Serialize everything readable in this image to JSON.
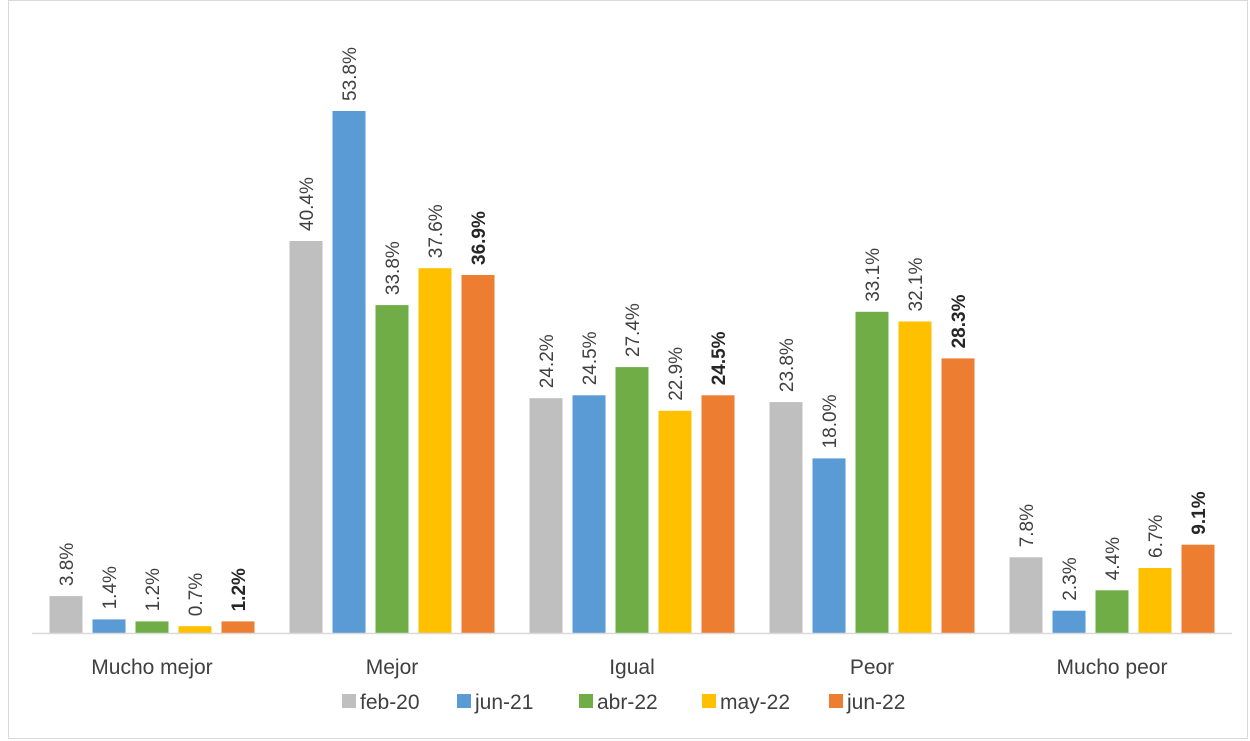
{
  "chart_data": {
    "type": "bar",
    "title": "",
    "categories": [
      "Mucho mejor",
      "Mejor",
      "Igual",
      "Peor",
      "Mucho peor"
    ],
    "series": [
      {
        "name": "feb-20",
        "color": "#bfbfbf",
        "values": [
          3.8,
          40.4,
          24.2,
          23.8,
          7.8
        ],
        "labels": [
          "3.8%",
          "40.4%",
          "24.2%",
          "23.8%",
          "7.8%"
        ],
        "bold": false
      },
      {
        "name": "jun-21",
        "color": "#5b9bd5",
        "values": [
          1.4,
          53.8,
          24.5,
          18.0,
          2.3
        ],
        "labels": [
          "1.4%",
          "53.8%",
          "24.5%",
          "18.0%",
          "2.3%"
        ],
        "bold": false
      },
      {
        "name": "abr-22",
        "color": "#70ad47",
        "values": [
          1.2,
          33.8,
          27.4,
          33.1,
          4.4
        ],
        "labels": [
          "1.2%",
          "33.8%",
          "27.4%",
          "33.1%",
          "4.4%"
        ],
        "bold": false
      },
      {
        "name": "may-22",
        "color": "#ffc000",
        "values": [
          0.7,
          37.6,
          22.9,
          32.1,
          6.7
        ],
        "labels": [
          "0.7%",
          "37.6%",
          "22.9%",
          "32.1%",
          "6.7%"
        ],
        "bold": false
      },
      {
        "name": "jun-22",
        "color": "#ed7d31",
        "values": [
          1.2,
          36.9,
          24.5,
          28.3,
          9.1
        ],
        "labels": [
          "1.2%",
          "36.9%",
          "24.5%",
          "28.3%",
          "9.1%"
        ],
        "bold": true
      }
    ],
    "ylim": [
      0,
      55
    ],
    "grid": false,
    "legend": "bottom",
    "xlabel": "",
    "ylabel": ""
  }
}
